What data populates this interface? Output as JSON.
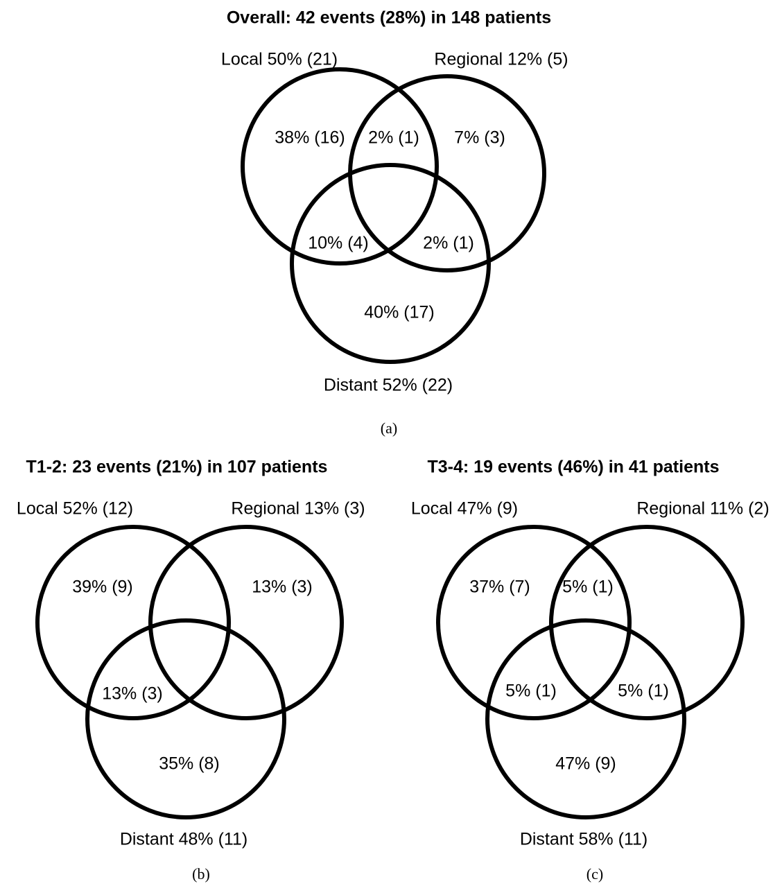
{
  "panels": [
    {
      "title": "Overall: 42 events (28%) in 148 patients",
      "sets": {
        "local": "Local 50% (21)",
        "regional": "Regional 12% (5)",
        "distant": "Distant 52% (22)"
      },
      "regions": {
        "local_only": "38% (16)",
        "local_regional": "2% (1)",
        "regional_only": "7% (3)",
        "local_distant": "10% (4)",
        "regional_distant": "2% (1)",
        "distant_only": "40% (17)"
      },
      "caption": "(a)"
    },
    {
      "title": "T1-2: 23 events (21%) in 107 patients",
      "sets": {
        "local": "Local 52% (12)",
        "regional": "Regional 13% (3)",
        "distant": "Distant 48% (11)"
      },
      "regions": {
        "local_only": "39% (9)",
        "regional_only": "13% (3)",
        "local_distant": "13% (3)",
        "distant_only": "35% (8)"
      },
      "caption": "(b)"
    },
    {
      "title": "T3-4: 19 events (46%) in 41 patients",
      "sets": {
        "local": "Local 47% (9)",
        "regional": "Regional 11% (2)",
        "distant": "Distant 58% (11)"
      },
      "regions": {
        "local_only": "37% (7)",
        "local_regional": "5% (1)",
        "local_distant": "5% (1)",
        "regional_distant": "5% (1)",
        "distant_only": "47% (9)"
      },
      "caption": "(c)"
    }
  ]
}
